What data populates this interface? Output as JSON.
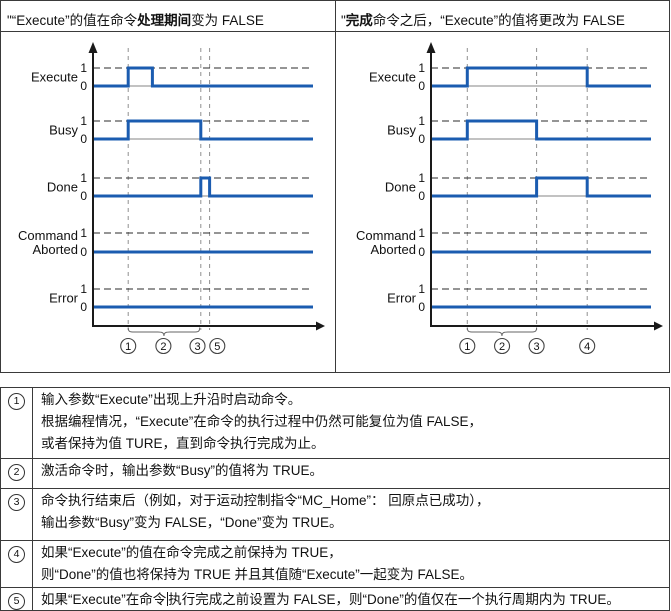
{
  "colors": {
    "signal": "#1b5cb0",
    "axis": "#1a1a1a",
    "grid": "#909090",
    "baseline": "#9e9e9e",
    "level_dash": "#2b2b2b",
    "border": "#3a3a3a",
    "text": "#111111"
  },
  "chart_data": [
    {
      "type": "line",
      "subtype": "timing_diagram",
      "position": "left",
      "title": "\"“Execute”的值在命令处理期间变为 FALSE",
      "title_parts": [
        {
          "t": "\"“Execute”的值在命令"
        },
        {
          "t": "处理期间",
          "b": true
        },
        {
          "t": "变为 FALSE"
        }
      ],
      "ylabels": [
        "Execute",
        "Busy",
        "Done",
        "Command|Aborted",
        "Error"
      ],
      "levels": [
        "1",
        "0"
      ],
      "x_range": [
        0,
        100
      ],
      "series": [
        {
          "name": "Execute",
          "steps": [
            [
              0,
              0
            ],
            [
              16,
              1
            ],
            [
              27,
              0
            ]
          ]
        },
        {
          "name": "Busy",
          "steps": [
            [
              0,
              0
            ],
            [
              16,
              1
            ],
            [
              49,
              0
            ]
          ]
        },
        {
          "name": "Done",
          "steps": [
            [
              0,
              0
            ],
            [
              49,
              1
            ],
            [
              53,
              0
            ]
          ]
        },
        {
          "name": "Command Aborted",
          "steps": [
            [
              0,
              0
            ]
          ]
        },
        {
          "name": "Error",
          "steps": [
            [
              0,
              0
            ]
          ]
        }
      ],
      "markers": [
        {
          "label": "1",
          "t": 16,
          "line": true
        },
        {
          "label": "2",
          "t": 32,
          "line": false
        },
        {
          "label": "3",
          "t": 49,
          "line": true,
          "label_t": 47.5
        },
        {
          "label": "5",
          "t": 53,
          "line": true,
          "label_t": 56.5
        }
      ],
      "brace": [
        16,
        48.5
      ],
      "grid": "vertical-dashed",
      "legend_position": "none"
    },
    {
      "type": "line",
      "subtype": "timing_diagram",
      "position": "right",
      "title": "\"完成命令之后，“Execute”的值将更改为 FALSE",
      "title_parts": [
        {
          "t": "\""
        },
        {
          "t": "完成",
          "b": true
        },
        {
          "t": "命令之后，“Execute”的值将更改为 FALSE"
        }
      ],
      "ylabels": [
        "Execute",
        "Busy",
        "Done",
        "Command|Aborted",
        "Error"
      ],
      "levels": [
        "1",
        "0"
      ],
      "x_range": [
        0,
        100
      ],
      "series": [
        {
          "name": "Execute",
          "steps": [
            [
              0,
              0
            ],
            [
              16.5,
              1
            ],
            [
              71,
              0
            ]
          ]
        },
        {
          "name": "Busy",
          "steps": [
            [
              0,
              0
            ],
            [
              16.5,
              1
            ],
            [
              48,
              0
            ]
          ]
        },
        {
          "name": "Done",
          "steps": [
            [
              0,
              0
            ],
            [
              48,
              1
            ],
            [
              71,
              0
            ]
          ]
        },
        {
          "name": "Command Aborted",
          "steps": [
            [
              0,
              0
            ]
          ]
        },
        {
          "name": "Error",
          "steps": [
            [
              0,
              0
            ]
          ]
        }
      ],
      "markers": [
        {
          "label": "1",
          "t": 16.5,
          "line": true
        },
        {
          "label": "2",
          "t": 32.3,
          "line": false
        },
        {
          "label": "3",
          "t": 48,
          "line": true
        },
        {
          "label": "4",
          "t": 71,
          "line": true
        }
      ],
      "brace": [
        16.5,
        48
      ],
      "grid": "vertical-dashed",
      "legend_position": "none"
    }
  ],
  "legend": {
    "rows": [
      {
        "num": "1",
        "lines": [
          "输入参数“Execute”出现上升沿时启动命令。",
          "根据编程情况，“Execute”在命令的执行过程中仍然可能复位为值 FALSE，",
          "或者保持为值 TURE，直到命令执行完成为止。"
        ]
      },
      {
        "num": "2",
        "lines": [
          "激活命令时，输出参数“Busy”的值将为 TRUE。"
        ]
      },
      {
        "num": "3",
        "lines": [
          "命令执行结束后（例如，对于运动控制指令“MC_Home”： 回原点已成功），",
          "输出参数“Busy”变为 FALSE，“Done”变为 TRUE。"
        ]
      },
      {
        "num": "4",
        "lines": [
          "如果“Execute”的值在命令完成之前保持为 TRUE，",
          "则“Done”的值也将保持为 TRUE 并且其值随“Execute”一起变为 FALSE。"
        ]
      },
      {
        "num": "5",
        "lines": [
          {
            "pre": "如果“Execute”在命令",
            "post": "执行完成之前设置为 FALSE，则“Done”的值仅在一个执行周期内为 TRUE。",
            "caret": true
          }
        ]
      }
    ]
  }
}
